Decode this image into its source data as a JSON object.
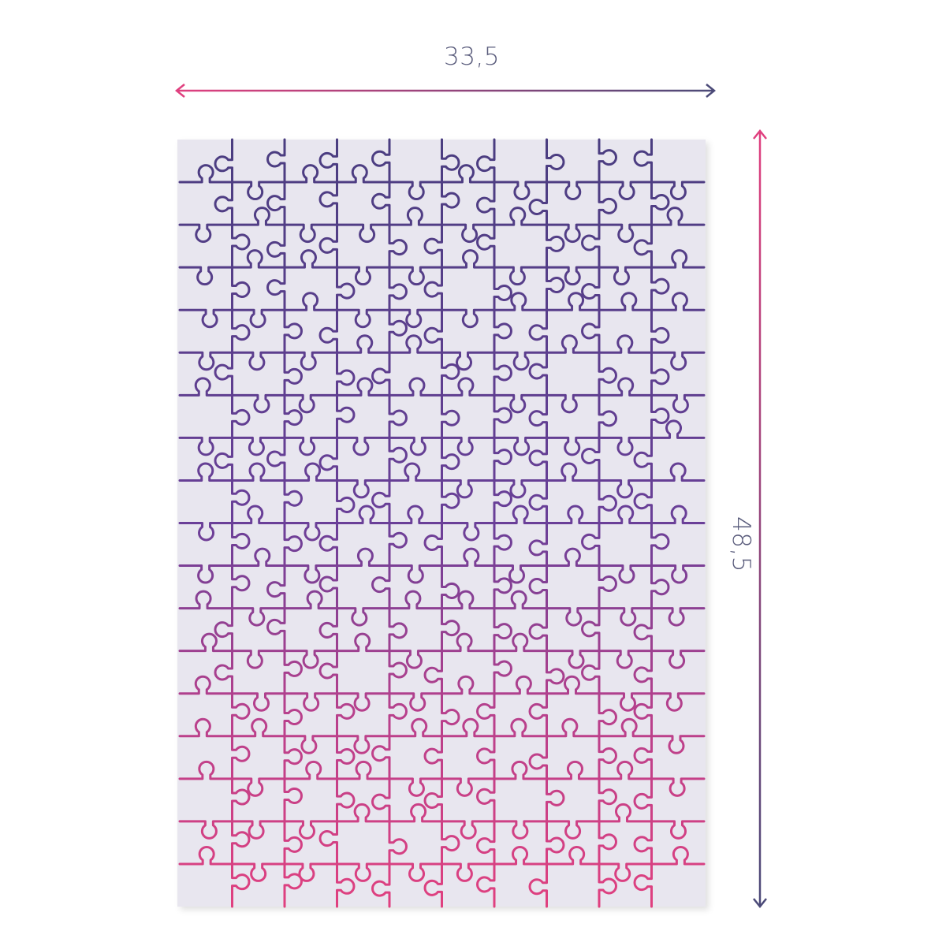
{
  "dimensions": {
    "width_label": "33,5",
    "height_label": "48,5"
  },
  "colors": {
    "pink": "#e0407f",
    "purple": "#4a3d80",
    "arrow_dark": "#4b4a78",
    "puzzle_background": "#e8e6ef",
    "label_text": "#5a5c7c"
  }
}
